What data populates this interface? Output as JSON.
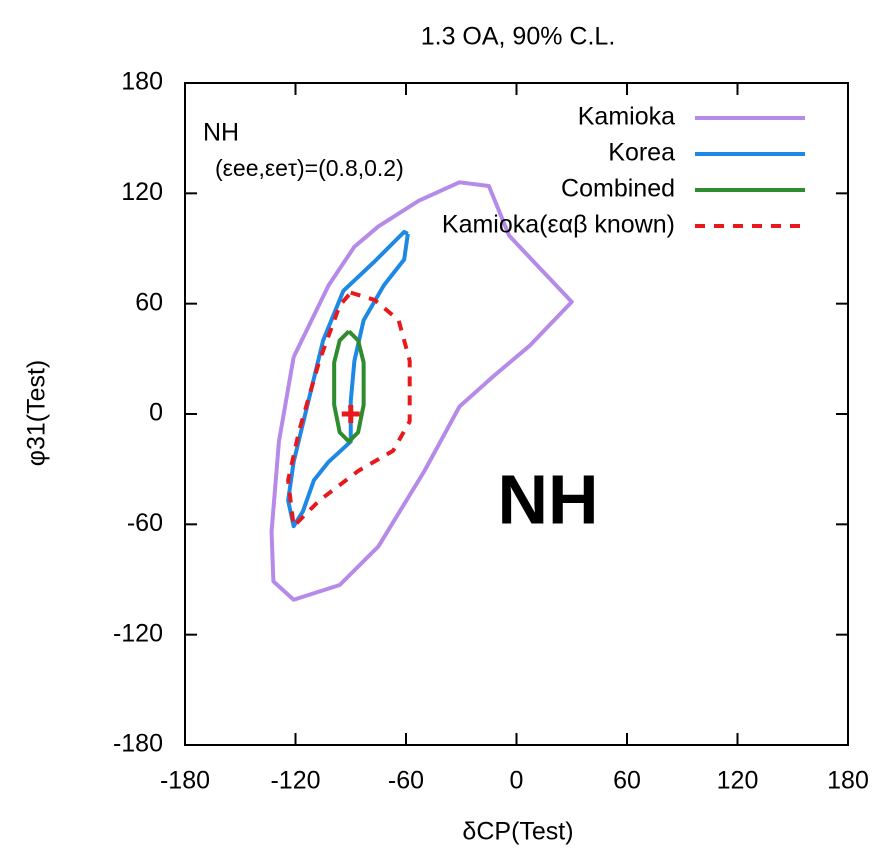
{
  "chart_data": {
    "type": "line",
    "title": "1.3 OA, 90% C.L.",
    "xlabel": "δCP(Test)",
    "ylabel": "φ31(Test)",
    "xlim": [
      -180,
      180
    ],
    "ylim": [
      -180,
      180
    ],
    "xticks": [
      -180,
      -120,
      -60,
      0,
      60,
      120,
      180
    ],
    "yticks": [
      -180,
      -120,
      -60,
      0,
      60,
      120,
      180
    ],
    "annotations": [
      "NH",
      "(εee,εeτ)=(0.8,0.2)",
      "NH"
    ],
    "series": [
      {
        "name": "Kamioka",
        "color": "#b58ae8",
        "dash": false,
        "x": [
          -121,
          -102,
          -88,
          -75,
          -53,
          -31,
          -15,
          -4,
          12,
          30,
          7,
          -12,
          -31,
          -50,
          -75,
          -96,
          -121,
          -132,
          -133,
          -129,
          -121
        ],
        "y": [
          31,
          70,
          91,
          102,
          116,
          126,
          124,
          97,
          80,
          61,
          37,
          21,
          4,
          -31,
          -72,
          -93,
          -101,
          -91,
          -64,
          -15,
          31
        ]
      },
      {
        "name": "Korea",
        "color": "#1e88e5",
        "dash": false,
        "x": [
          -59,
          -61,
          -72,
          -83,
          -88,
          -90,
          -90,
          -102,
          -110,
          -116,
          -121,
          -124,
          -121,
          -113,
          -105,
          -94,
          -77,
          -66,
          -61,
          -59
        ],
        "y": [
          98,
          84,
          70,
          51,
          29,
          7,
          -15,
          -26,
          -36,
          -53,
          -61,
          -47,
          -26,
          7,
          40,
          67,
          83,
          94,
          99,
          98
        ]
      },
      {
        "name": "Combined",
        "color": "#2e8b2e",
        "dash": false,
        "x": [
          -91,
          -86,
          -83,
          -83,
          -86,
          -91,
          -96,
          -99,
          -99,
          -96,
          -91
        ],
        "y": [
          45,
          40,
          28,
          5,
          -10,
          -15,
          -10,
          5,
          28,
          40,
          45
        ]
      },
      {
        "name": "Kamioka(εαβ known)",
        "color": "#e8191c",
        "dash": true,
        "x": [
          -90,
          -77,
          -64,
          -58,
          -58,
          -67,
          -86,
          -107,
          -121,
          -124,
          -118,
          -107,
          -96,
          -90
        ],
        "y": [
          66,
          62,
          51,
          29,
          -4,
          -20,
          -31,
          -47,
          -61,
          -36,
          -9,
          29,
          59,
          66
        ]
      }
    ],
    "marker": {
      "x": -90,
      "y": 0,
      "color": "#e8191c"
    }
  }
}
